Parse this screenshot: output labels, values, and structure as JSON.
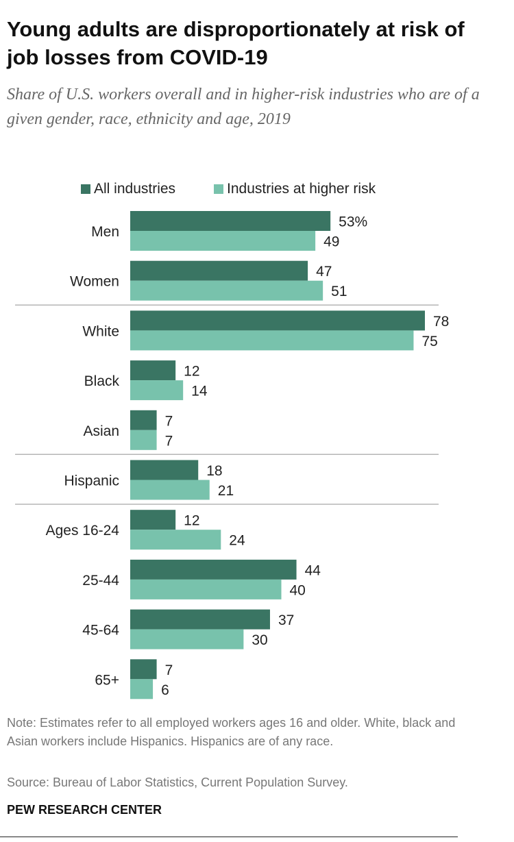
{
  "chart_data": {
    "type": "bar",
    "orientation": "horizontal",
    "title": "Young adults are disproportionately at risk of job losses from COVID-19",
    "subtitle": "Share of U.S. workers overall and in higher-risk industries who are of a given gender, race, ethnicity and age, 2019",
    "categories": [
      "Men",
      "Women",
      "White",
      "Black",
      "Asian",
      "Hispanic",
      "Ages 16-24",
      "25-44",
      "45-64",
      "65+"
    ],
    "series": [
      {
        "name": "All industries",
        "color": "#3a7563",
        "values": [
          53,
          47,
          78,
          12,
          7,
          18,
          12,
          44,
          37,
          7
        ],
        "labels": [
          "53%",
          "47",
          "78",
          "12",
          "7",
          "18",
          "12",
          "44",
          "37",
          "7"
        ]
      },
      {
        "name": "Industries at higher risk",
        "color": "#78c2ac",
        "values": [
          49,
          51,
          75,
          14,
          7,
          21,
          24,
          40,
          30,
          6
        ],
        "labels": [
          "49",
          "51",
          "75",
          "14",
          "7",
          "21",
          "24",
          "40",
          "30",
          "6"
        ]
      }
    ],
    "xlim": [
      0,
      78
    ],
    "legend": "top",
    "group_separators_after": [
      "Women",
      "Asian",
      "Hispanic"
    ],
    "grid": false
  },
  "footer": {
    "note": "Note: Estimates refer to all employed workers ages 16 and older. White, black and Asian workers include Hispanics. Hispanics are of any race.",
    "source": "Source: Bureau of Labor Statistics, Current Population Survey.",
    "brand": "PEW RESEARCH CENTER"
  }
}
